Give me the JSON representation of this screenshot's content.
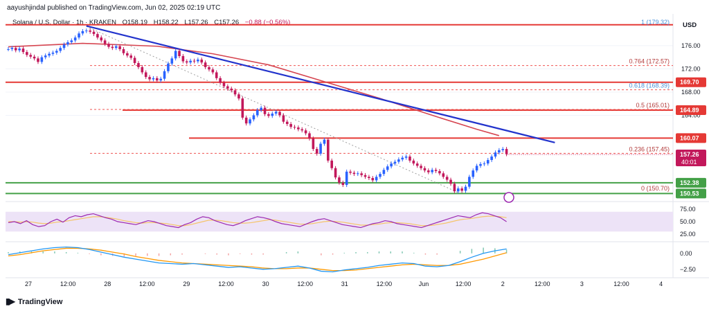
{
  "header": {
    "publisher_line": "aayushjindal published on TradingView.com, Jun 02, 2025 02:19 UTC"
  },
  "pane_label": {
    "symbol": "Solana / U.S. Dollar · 1h · KRAKEN",
    "open": "O158.19",
    "high": "H158.22",
    "low": "L157.26",
    "close": "C157.26",
    "change": "−0.88 (−0.56%)"
  },
  "currency_label": "USD",
  "logo_text": "TradingView",
  "colors": {
    "up": "#2962ff",
    "down": "#c2185b",
    "trendline": "#2233cc",
    "ma": "#d64550",
    "level_red": "#e53935",
    "level_green": "#43a047",
    "fib": "#ef5350",
    "rsi": "#9c27b0",
    "rsi_band": "#ede3f7",
    "macd": "#2196f3",
    "signal": "#ff9800"
  },
  "chart_data": {
    "type": "candlestick",
    "price_axis": {
      "range": [
        149.5,
        181.0
      ],
      "ticks": [
        "176.00",
        "172.00",
        "168.00",
        "164.00"
      ]
    },
    "x_axis": {
      "ticks": [
        "27",
        "12:00",
        "28",
        "12:00",
        "29",
        "12:00",
        "30",
        "12:00",
        "31",
        "12:00",
        "Jun",
        "12:00",
        "2",
        "12:00",
        "3",
        "12:00",
        "4"
      ]
    },
    "close_series": [
      175.4,
      175.6,
      175.2,
      175.5,
      174.9,
      174.4,
      174.1,
      173.8,
      173.2,
      174.0,
      174.3,
      174.6,
      174.8,
      175.1,
      175.6,
      176.2,
      176.6,
      176.9,
      177.4,
      178.1,
      178.5,
      178.6,
      178.4,
      178.0,
      177.4,
      176.9,
      176.3,
      175.8,
      175.6,
      175.9,
      175.4,
      174.7,
      174.3,
      173.9,
      173.0,
      172.3,
      171.4,
      170.6,
      170.2,
      170.4,
      170.0,
      170.3,
      171.6,
      172.9,
      173.8,
      175.1,
      174.2,
      173.3,
      173.1,
      173.4,
      173.3,
      173.6,
      173.1,
      172.3,
      171.9,
      171.4,
      170.4,
      169.6,
      169.0,
      168.6,
      168.3,
      167.6,
      166.9,
      163.6,
      162.6,
      163.3,
      164.0,
      164.9,
      165.3,
      164.2,
      163.9,
      164.3,
      164.6,
      164.0,
      162.9,
      162.5,
      162.0,
      161.9,
      161.6,
      161.4,
      160.9,
      160.0,
      158.2,
      157.4,
      159.1,
      159.8,
      156.2,
      154.9,
      153.3,
      152.4,
      152.0,
      154.3,
      154.1,
      153.9,
      154.0,
      153.7,
      153.4,
      153.2,
      152.8,
      153.4,
      153.9,
      154.6,
      155.2,
      155.7,
      156.0,
      156.4,
      156.7,
      156.9,
      156.2,
      155.7,
      155.3,
      154.9,
      154.5,
      154.2,
      154.6,
      154.4,
      154.0,
      153.4,
      152.9,
      152.2,
      150.9,
      151.4,
      151.0,
      151.7,
      153.4,
      154.5,
      155.3,
      155.6,
      155.7,
      156.3,
      156.9,
      157.6,
      158.0,
      158.2,
      157.3
    ],
    "moving_average": {
      "name": "",
      "points": [
        [
          0,
          175.8
        ],
        [
          20,
          176.4
        ],
        [
          40,
          175.9
        ],
        [
          55,
          174.6
        ],
        [
          70,
          172.7
        ],
        [
          85,
          169.8
        ],
        [
          100,
          166.9
        ],
        [
          115,
          163.8
        ],
        [
          126,
          161.6
        ],
        [
          132,
          160.5
        ]
      ]
    },
    "horizontal_levels": [
      {
        "label": "169.70",
        "value": 169.7,
        "kind": "resistance",
        "style": "solid"
      },
      {
        "label": "164.89",
        "value": 164.89,
        "kind": "resistance",
        "style": "solid"
      },
      {
        "label": "160.07",
        "value": 160.07,
        "kind": "resistance",
        "style": "solid"
      },
      {
        "label": "152.38",
        "value": 152.38,
        "kind": "support",
        "style": "solid"
      },
      {
        "label": "150.53",
        "value": 150.53,
        "kind": "support",
        "style": "solid"
      }
    ],
    "top_line": {
      "value": 179.6,
      "color": "#e53935"
    },
    "fib_levels": [
      {
        "label": "1 (179.32)",
        "value": 179.32
      },
      {
        "label": "0.764 (172.57)",
        "value": 172.57
      },
      {
        "label": "0.618 (168.39)",
        "value": 168.39
      },
      {
        "label": "0.5 (165.01)",
        "value": 165.01
      },
      {
        "label": "0.236 (157.45)",
        "value": 157.45
      },
      {
        "label": "0 (150.70)",
        "value": 150.7
      }
    ],
    "trendline": {
      "from": [
        21,
        179.4
      ],
      "to": [
        147,
        159.3
      ]
    },
    "current_price": {
      "label": "157.26",
      "countdown": "40:01"
    },
    "rsi": {
      "axis_ticks": [
        "75.00",
        "50.00",
        "25.00"
      ],
      "band": [
        30,
        70
      ],
      "values": [
        48,
        50,
        46,
        52,
        44,
        40,
        42,
        50,
        55,
        49,
        58,
        62,
        60,
        64,
        66,
        62,
        58,
        55,
        50,
        48,
        46,
        44,
        48,
        52,
        50,
        46,
        42,
        40,
        38,
        44,
        48,
        55,
        60,
        58,
        52,
        48,
        44,
        42,
        46,
        52,
        56,
        60,
        58,
        55,
        50,
        46,
        44,
        42,
        40,
        45,
        50,
        54,
        56,
        52,
        48,
        44,
        42,
        40,
        38,
        42,
        46,
        48,
        52,
        50,
        46,
        44,
        42,
        40,
        38,
        42,
        46,
        50,
        54,
        58,
        62,
        60,
        58,
        64,
        68,
        66,
        62,
        58,
        50
      ],
      "ma_values": [
        50,
        50,
        49,
        50,
        49,
        47,
        46,
        47,
        49,
        50,
        52,
        54,
        56,
        58,
        60,
        60,
        59,
        57,
        55,
        52,
        50,
        48,
        47,
        48,
        48,
        47,
        46,
        44,
        42,
        42,
        44,
        47,
        50,
        53,
        53,
        52,
        50,
        48,
        47,
        47,
        48,
        50,
        52,
        54,
        53,
        51,
        49,
        47,
        45,
        45,
        46,
        48,
        50,
        51,
        50,
        49,
        47,
        45,
        43,
        43,
        44,
        45,
        47,
        48,
        48,
        47,
        46,
        44,
        42,
        42,
        43,
        45,
        47,
        50,
        53,
        55,
        56,
        58,
        60,
        61,
        61,
        60,
        58
      ]
    },
    "macd": {
      "axis_ticks": [
        "0.00",
        "−2.50"
      ],
      "range": [
        -3.5,
        1.5
      ],
      "macd_line": [
        -0.2,
        0.1,
        0.4,
        0.7,
        0.9,
        1.0,
        0.9,
        0.6,
        0.2,
        -0.2,
        -0.6,
        -0.9,
        -1.2,
        -1.5,
        -1.6,
        -1.7,
        -1.6,
        -1.8,
        -2.0,
        -2.2,
        -2.1,
        -2.3,
        -2.5,
        -2.4,
        -2.2,
        -2.0,
        -2.3,
        -2.8,
        -2.9,
        -2.6,
        -2.4,
        -2.2,
        -1.9,
        -1.7,
        -1.5,
        -1.6,
        -2.0,
        -2.1,
        -1.9,
        -1.3,
        -0.6,
        0.0,
        0.4,
        0.7
      ],
      "signal_line": [
        -0.4,
        -0.2,
        0.1,
        0.4,
        0.6,
        0.8,
        0.8,
        0.7,
        0.5,
        0.2,
        -0.1,
        -0.5,
        -0.8,
        -1.1,
        -1.3,
        -1.5,
        -1.6,
        -1.7,
        -1.8,
        -1.9,
        -2.0,
        -2.1,
        -2.3,
        -2.4,
        -2.4,
        -2.3,
        -2.3,
        -2.5,
        -2.7,
        -2.7,
        -2.6,
        -2.4,
        -2.2,
        -2.0,
        -1.8,
        -1.7,
        -1.8,
        -1.9,
        -1.9,
        -1.7,
        -1.3,
        -0.9,
        -0.4,
        0.1
      ]
    }
  }
}
